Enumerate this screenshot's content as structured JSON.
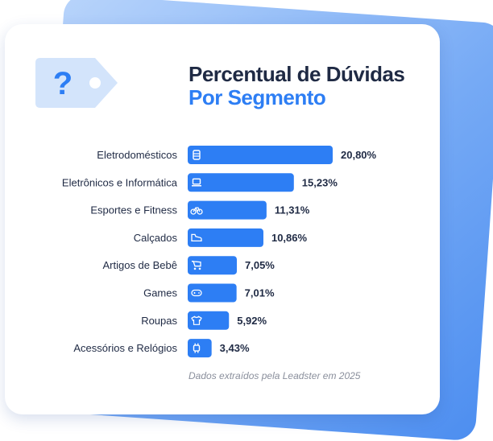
{
  "header": {
    "title_line1": "Percentual de Dúvidas",
    "title_line2": "Por Segmento",
    "tag_symbol": "?"
  },
  "colors": {
    "bar": "#2d7ef4",
    "title_dark": "#1f2a44",
    "title_accent": "#2d7ef4",
    "tag": "#d3e4fb"
  },
  "chart_data": {
    "type": "bar",
    "orientation": "horizontal",
    "categories": [
      "Eletrodomésticos",
      "Eletrônicos e Informática",
      "Esportes e Fitness",
      "Calçados",
      "Artigos de Bebê",
      "Games",
      "Roupas",
      "Acessórios e Relógios"
    ],
    "values": [
      20.8,
      15.23,
      11.31,
      10.86,
      7.05,
      7.01,
      5.92,
      3.43
    ],
    "value_labels": [
      "20,80%",
      "15,23%",
      "11,31%",
      "10,86%",
      "7,05%",
      "7,01%",
      "5,92%",
      "3,43%"
    ],
    "icons": [
      "appliance-icon",
      "laptop-icon",
      "bicycle-icon",
      "shoe-icon",
      "stroller-icon",
      "gamepad-icon",
      "shirt-icon",
      "watch-icon"
    ],
    "unit": "%",
    "grid": false,
    "legend": "none"
  },
  "footer": {
    "source_note": "Dados extraídos pela Leadster em 2025"
  }
}
